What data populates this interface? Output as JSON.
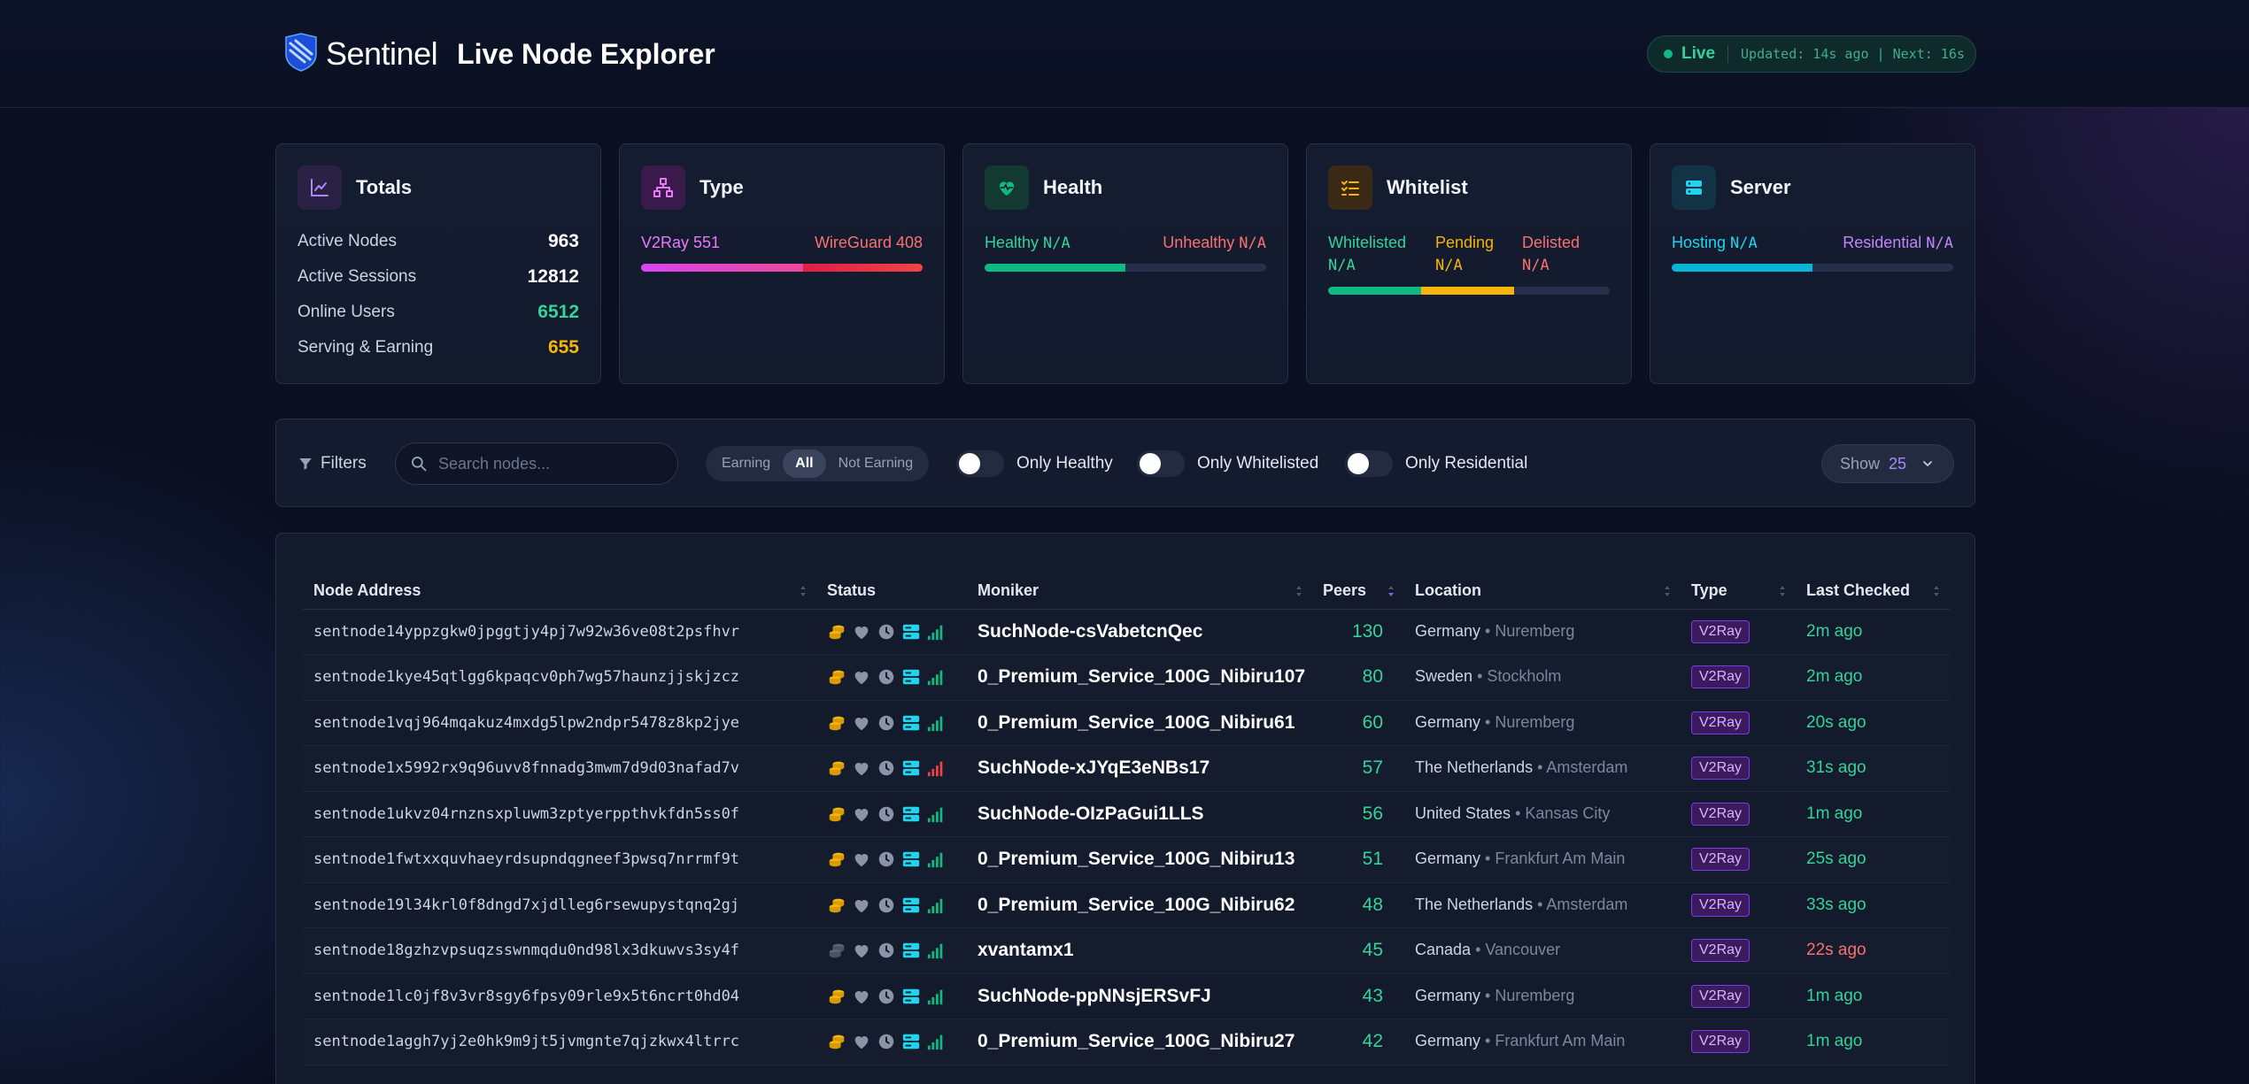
{
  "header": {
    "brand_name": "Sentinel",
    "page_title": "Live Node Explorer",
    "live_label": "Live",
    "updated_text": "Updated: 14s ago | Next: 16s"
  },
  "cards": {
    "totals": {
      "title": "Totals",
      "rows": [
        {
          "label": "Active Nodes",
          "value": "963"
        },
        {
          "label": "Active Sessions",
          "value": "12812"
        },
        {
          "label": "Online Users",
          "value": "6512"
        },
        {
          "label": "Serving & Earning",
          "value": "655"
        }
      ]
    },
    "type": {
      "title": "Type",
      "v2ray_label": "V2Ray 551",
      "wireguard_label": "WireGuard 408",
      "v2ray_fraction": 0.575
    },
    "health": {
      "title": "Health",
      "healthy_label": "Healthy",
      "healthy_value": "N/A",
      "unhealthy_label": "Unhealthy",
      "unhealthy_value": "N/A",
      "healthy_fraction": 0.5
    },
    "whitelist": {
      "title": "Whitelist",
      "whitelisted_label": "Whitelisted",
      "whitelisted_value": "N/A",
      "pending_label": "Pending",
      "pending_value": "N/A",
      "delisted_label": "Delisted",
      "delisted_value": "N/A",
      "fractions": [
        0.33,
        0.33,
        0.34
      ]
    },
    "server": {
      "title": "Server",
      "hosting_label": "Hosting",
      "hosting_value": "N/A",
      "residential_label": "Residential",
      "residential_value": "N/A",
      "hosting_fraction": 0.5
    }
  },
  "filters": {
    "label": "Filters",
    "search_placeholder": "Search nodes...",
    "segment": [
      "Earning",
      "All",
      "Not Earning"
    ],
    "segment_active": "All",
    "toggles": [
      "Only Healthy",
      "Only Whitelisted",
      "Only Residential"
    ],
    "show_label": "Show",
    "show_value": "25"
  },
  "table": {
    "columns": [
      "Node Address",
      "Status",
      "Moniker",
      "Peers",
      "Location",
      "Type",
      "Last Checked"
    ],
    "rows": [
      {
        "address": "sentnode14yppzgkw0jpggtjy4pj7w92w36ve08t2psfhvr",
        "moniker": "SuchNode-csVabetcnQec",
        "peers": "130",
        "country": "Germany",
        "city": "Nuremberg",
        "type": "V2Ray",
        "checked": "2m ago",
        "checked_status": "green",
        "earning": true,
        "signal": "green"
      },
      {
        "address": "sentnode1kye45qtlgg6kpaqcv0ph7wg57haunzjjskjzcz",
        "moniker": "0_Premium_Service_100G_Nibiru107",
        "peers": "80",
        "country": "Sweden",
        "city": "Stockholm",
        "type": "V2Ray",
        "checked": "2m ago",
        "checked_status": "green",
        "earning": true,
        "signal": "green"
      },
      {
        "address": "sentnode1vqj964mqakuz4mxdg5lpw2ndpr5478z8kp2jye",
        "moniker": "0_Premium_Service_100G_Nibiru61",
        "peers": "60",
        "country": "Germany",
        "city": "Nuremberg",
        "type": "V2Ray",
        "checked": "20s ago",
        "checked_status": "green",
        "earning": true,
        "signal": "green"
      },
      {
        "address": "sentnode1x5992rx9q96uvv8fnnadg3mwm7d9d03nafad7v",
        "moniker": "SuchNode-xJYqE3eNBs17",
        "peers": "57",
        "country": "The Netherlands",
        "city": "Amsterdam",
        "type": "V2Ray",
        "checked": "31s ago",
        "checked_status": "green",
        "earning": true,
        "signal": "red"
      },
      {
        "address": "sentnode1ukvz04rnznsxpluwm3zptyerppthvkfdn5ss0f",
        "moniker": "SuchNode-OIzPaGui1LLS",
        "peers": "56",
        "country": "United States",
        "city": "Kansas City",
        "type": "V2Ray",
        "checked": "1m ago",
        "checked_status": "green",
        "earning": true,
        "signal": "green"
      },
      {
        "address": "sentnode1fwtxxquvhaeyrdsupndqgneef3pwsq7nrrmf9t",
        "moniker": "0_Premium_Service_100G_Nibiru13",
        "peers": "51",
        "country": "Germany",
        "city": "Frankfurt Am Main",
        "type": "V2Ray",
        "checked": "25s ago",
        "checked_status": "green",
        "earning": true,
        "signal": "green"
      },
      {
        "address": "sentnode19l34krl0f8dngd7xjdlleg6rsewupystqnq2gj",
        "moniker": "0_Premium_Service_100G_Nibiru62",
        "peers": "48",
        "country": "The Netherlands",
        "city": "Amsterdam",
        "type": "V2Ray",
        "checked": "33s ago",
        "checked_status": "green",
        "earning": true,
        "signal": "green"
      },
      {
        "address": "sentnode18gzhzvpsuqzsswnmqdu0nd98lx3dkuwvs3sy4f",
        "moniker": "xvantamx1",
        "peers": "45",
        "country": "Canada",
        "city": "Vancouver",
        "type": "V2Ray",
        "checked": "22s ago",
        "checked_status": "red",
        "earning": false,
        "signal": "green"
      },
      {
        "address": "sentnode1lc0jf8v3vr8sgy6fpsy09rle9x5t6ncrt0hd04",
        "moniker": "SuchNode-ppNNsjERSvFJ",
        "peers": "43",
        "country": "Germany",
        "city": "Nuremberg",
        "type": "V2Ray",
        "checked": "1m ago",
        "checked_status": "green",
        "earning": true,
        "signal": "green"
      },
      {
        "address": "sentnode1aggh7yj2e0hk9m9jt5jvmgnte7qjzkwx4ltrrc",
        "moniker": "0_Premium_Service_100G_Nibiru27",
        "peers": "42",
        "country": "Germany",
        "city": "Frankfurt Am Main",
        "type": "V2Ray",
        "checked": "1m ago",
        "checked_status": "green",
        "earning": true,
        "signal": "green"
      }
    ]
  },
  "colors": {
    "accent_purple": "#a78bfa",
    "green": "#34d399",
    "red": "#f87171",
    "pink": "#e879f9",
    "amber": "#f5b50b",
    "cyan": "#22d3ee"
  }
}
